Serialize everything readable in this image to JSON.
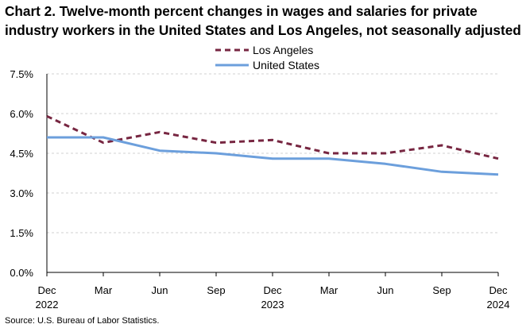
{
  "title_lines": [
    "Chart 2. Twelve-month percent changes in wages and salaries for private",
    "industry workers in the United States and Los Angeles, not seasonally adjusted"
  ],
  "source": "Source: U.S. Bureau of Labor Statistics.",
  "chart_data": {
    "type": "line",
    "title": "Chart 2. Twelve-month percent changes in wages and salaries for private industry workers in the United States and Los Angeles, not seasonally adjusted",
    "categories": [
      "Dec 2022",
      "Mar 2023",
      "Jun 2023",
      "Sep 2023",
      "Dec 2023",
      "Mar 2024",
      "Jun 2024",
      "Sep 2024",
      "Dec 2024"
    ],
    "x_tick_labels": [
      "Dec",
      "Mar",
      "Jun",
      "Sep",
      "Dec",
      "Mar",
      "Jun",
      "Sep",
      "Dec"
    ],
    "x_year_labels": [
      "2022",
      "",
      "",
      "",
      "2023",
      "",
      "",
      "",
      "2024"
    ],
    "y_ticks": [
      0,
      1.5,
      3.0,
      4.5,
      6.0,
      7.5
    ],
    "y_tick_labels": [
      "0.0%",
      "1.5%",
      "3.0%",
      "4.5%",
      "6.0%",
      "7.5%"
    ],
    "ylim": [
      0,
      7.5
    ],
    "xlabel": "",
    "ylabel": "",
    "grid": true,
    "legend_position": "top-center",
    "series": [
      {
        "name": "Los Angeles",
        "color": "#772641",
        "style": "dashed",
        "values": [
          5.9,
          4.9,
          5.3,
          4.9,
          5.0,
          4.5,
          4.5,
          4.8,
          4.3
        ]
      },
      {
        "name": "United States",
        "color": "#6C9FDC",
        "style": "solid",
        "values": [
          5.1,
          5.1,
          4.6,
          4.5,
          4.3,
          4.3,
          4.1,
          3.8,
          3.7
        ]
      }
    ]
  }
}
